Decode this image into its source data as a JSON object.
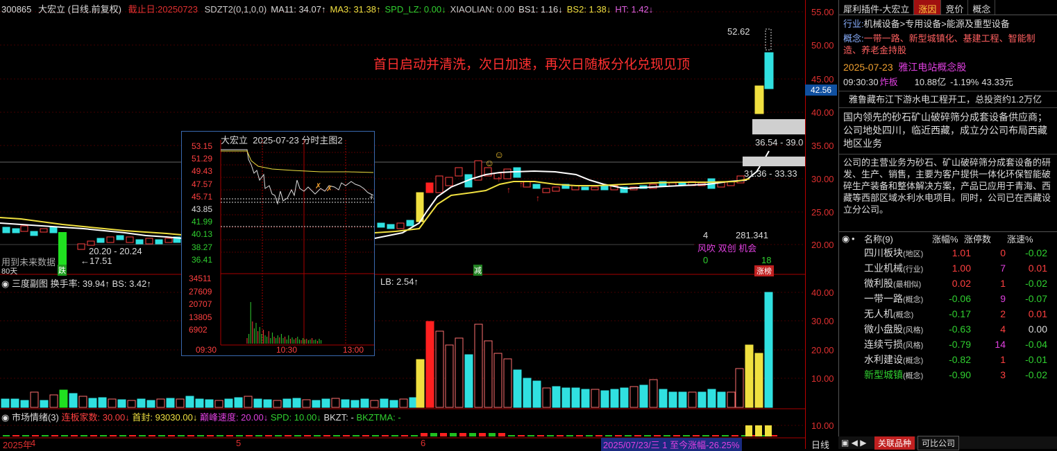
{
  "header": {
    "code": "300865",
    "name": "大宏立",
    "mode": "(日线.前复权)",
    "cutoff_label": "截止日:20250723",
    "indicators": [
      {
        "text": "SDZT2(0,1,0,0)",
        "color": "#cccccc"
      },
      {
        "text": "MA11: 34.07↑",
        "color": "#dddddd"
      },
      {
        "text": "MA3: 31.38↑",
        "color": "#f0e040"
      },
      {
        "text": "SPD_LZ: 0.00↓",
        "color": "#30d030"
      },
      {
        "text": "XIAOLIAN: 0.00",
        "color": "#cccccc"
      },
      {
        "text": "BS1: 1.16↓",
        "color": "#dddddd"
      },
      {
        "text": "BS2: 1.38↓",
        "color": "#f0e040"
      },
      {
        "text": "HT: 1.42↓",
        "color": "#e060e0"
      }
    ]
  },
  "annotation": "首日启动并清洗，次日加速，再次日随板分化兑现见顶",
  "labels": {
    "high_price": "52.62",
    "range1": "36.54 - 39.0",
    "range2": "31.36 - 33.33",
    "low_range": "20.20 - 20.24",
    "low_price": "17.51",
    "future_data": "用到未来数据",
    "days": "80天",
    "jump": "跌",
    "reduce": "减",
    "count_a": "4",
    "value_a": "281.341",
    "tags": "风吹 双创 机会",
    "count_b": "0",
    "count_c": "18",
    "zhangbang": "涨榜",
    "current_price": "42.56"
  },
  "price_axis": [
    "55.00",
    "50.00",
    "45.00",
    "40.00",
    "35.00",
    "30.00",
    "25.00",
    "20.00"
  ],
  "volume_axis": [
    "40.00",
    "30.00",
    "20.00",
    "10.00"
  ],
  "emotion_axis": [
    "10.00"
  ],
  "sub1": {
    "title": "三度副图",
    "turnover": "换手率: 39.94↑",
    "bs": "BS: 3.42↑",
    "lb": "LB: 2.54↑"
  },
  "sub2": {
    "title": "市场情绪(3)",
    "limit_count": "连板家数: 30.00↓",
    "first_seal": "首封: 93030.00↓",
    "peak_speed": "巅峰速度: 20.00↓",
    "spd": "SPD: 10.00↓",
    "bkzt": "BKZT: -",
    "bkztma": "BKZTMA: -"
  },
  "inset": {
    "title": "大宏立",
    "date": "2025-07-23 分时主图2",
    "price_ticks": [
      "53.15",
      "51.29",
      "49.43",
      "47.57",
      "45.71",
      "43.85",
      "41.99",
      "40.13",
      "38.27",
      "36.41"
    ],
    "vol_ticks": [
      "34511",
      "27609",
      "20707",
      "13805",
      "6902"
    ],
    "time_ticks": [
      "09:30",
      "10:30",
      "13:00"
    ]
  },
  "bottom": {
    "year": "2025年",
    "m4": "4",
    "m5": "5",
    "m6": "6",
    "range_text": "2025/07/23/三 1 至今涨幅-26.25%",
    "period": "日线"
  },
  "right_panel": {
    "tabs": [
      "犀利插件-大宏立",
      "涨因",
      "竞价",
      "概念"
    ],
    "industry_label": "行业:",
    "industry": "机械设备>专用设备>能源及重型设备",
    "concept_label": "概念:",
    "concepts": [
      "一带一路",
      "新型城镇化",
      "基建工程",
      "智能制造",
      "养老金持股"
    ],
    "date_line": "2025-07-23",
    "event": "雅江电站概念股",
    "time": "09:30:30",
    "status": "炸板",
    "amount": "10.88亿",
    "change": "-1.19%",
    "mcap": "43.33元",
    "news": "雅鲁藏布江下游水电工程开工，总投资约1.2万亿",
    "desc1": "国内领先的砂石矿山破碎筛分成套设备供应商；公司地处四川，临近西藏，成立分公司布局西藏地区业务",
    "desc2": "公司的主营业务为砂石、矿山破碎筛分成套设备的研发、生产、销售，主要为客户提供一体化环保智能破碎生产装备和整体解决方案，产品已应用于青海、西藏等西部区域水利水电项目。同时，公司已在西藏设立分公司。",
    "table_head": [
      "名称(9)",
      "涨幅%",
      "涨停数",
      "涨速%"
    ],
    "sectors": [
      {
        "name": "四川板块",
        "type": "(地区)",
        "pct": "1.01",
        "cnt": "0",
        "spd": "-0.02",
        "pc": "#ff4040",
        "cc": "#ff4040",
        "sc": "#30d030"
      },
      {
        "name": "工业机械",
        "type": "(行业)",
        "pct": "1.00",
        "cnt": "7",
        "spd": "0.01",
        "pc": "#ff4040",
        "cc": "#e040e0",
        "sc": "#ff4040"
      },
      {
        "name": "微利股",
        "type": "(最相似)",
        "pct": "0.02",
        "cnt": "1",
        "spd": "-0.02",
        "pc": "#ff4040",
        "cc": "#ff4040",
        "sc": "#30d030"
      },
      {
        "name": "一带一路",
        "type": "(概念)",
        "pct": "-0.06",
        "cnt": "9",
        "spd": "-0.07",
        "pc": "#30d030",
        "cc": "#e040e0",
        "sc": "#30d030"
      },
      {
        "name": "无人机",
        "type": "(概念)",
        "pct": "-0.17",
        "cnt": "2",
        "spd": "0.01",
        "pc": "#30d030",
        "cc": "#ff4040",
        "sc": "#ff4040"
      },
      {
        "name": "微小盘股",
        "type": "(风格)",
        "pct": "-0.63",
        "cnt": "4",
        "spd": "0.00",
        "pc": "#30d030",
        "cc": "#ff4040",
        "sc": "#dddddd"
      },
      {
        "name": "连续亏损",
        "type": "(风格)",
        "pct": "-0.79",
        "cnt": "14",
        "spd": "-0.04",
        "pc": "#30d030",
        "cc": "#e040e0",
        "sc": "#30d030"
      },
      {
        "name": "水利建设",
        "type": "(概念)",
        "pct": "-0.82",
        "cnt": "1",
        "spd": "-0.01",
        "pc": "#30d030",
        "cc": "#ff4040",
        "sc": "#30d030"
      },
      {
        "name": "新型城镇",
        "type": "(概念)",
        "pct": "-0.90",
        "cnt": "3",
        "spd": "-0.02",
        "pc": "#30d030",
        "cc": "#ff4040",
        "sc": "#30d030"
      }
    ],
    "bottom_tabs": [
      "关联品种",
      "可比公司"
    ]
  }
}
